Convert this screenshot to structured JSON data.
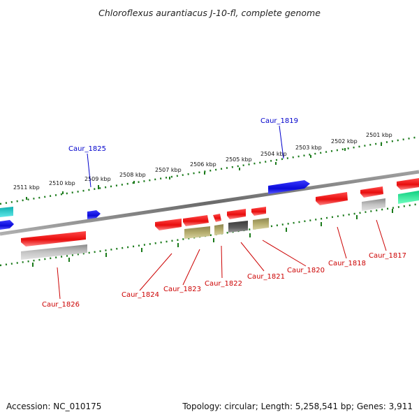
{
  "title": "Chloroflexus aurantiacus J-10-fl, complete genome",
  "footer": {
    "accession": "Accession: NC_010175",
    "summary": "Topology: circular; Length: 5,258,541 bp; Genes: 3,911"
  },
  "colors": {
    "forward": "#ee1c1c",
    "reverse": "#1a1ae0",
    "forward_label": "#cc0000",
    "reverse_label": "#0000cc",
    "ruler": "#1a7a1a",
    "backbone": "#7a7a7a",
    "rna_gray": "#b8b8b8",
    "dark_gray": "#5e5e5e",
    "olive": "#b5ad6e",
    "cyan": "#19c8c8",
    "green": "#19e69a"
  },
  "upper_ruler": {
    "labels": [
      "2511 kbp",
      "2510 kbp",
      "2509 kbp",
      "2508 kbp",
      "2507 kbp",
      "2506 kbp",
      "2505 kbp",
      "2504 kbp",
      "2503 kbp",
      "2502 kbp",
      "2501 kbp"
    ]
  },
  "genes": {
    "reverse": [
      "Caur_1825",
      "Caur_1819"
    ],
    "forward": [
      "Caur_1826",
      "Caur_1824",
      "Caur_1823",
      "Caur_1822",
      "Caur_1821",
      "Caur_1820",
      "Caur_1818",
      "Caur_1817"
    ]
  }
}
